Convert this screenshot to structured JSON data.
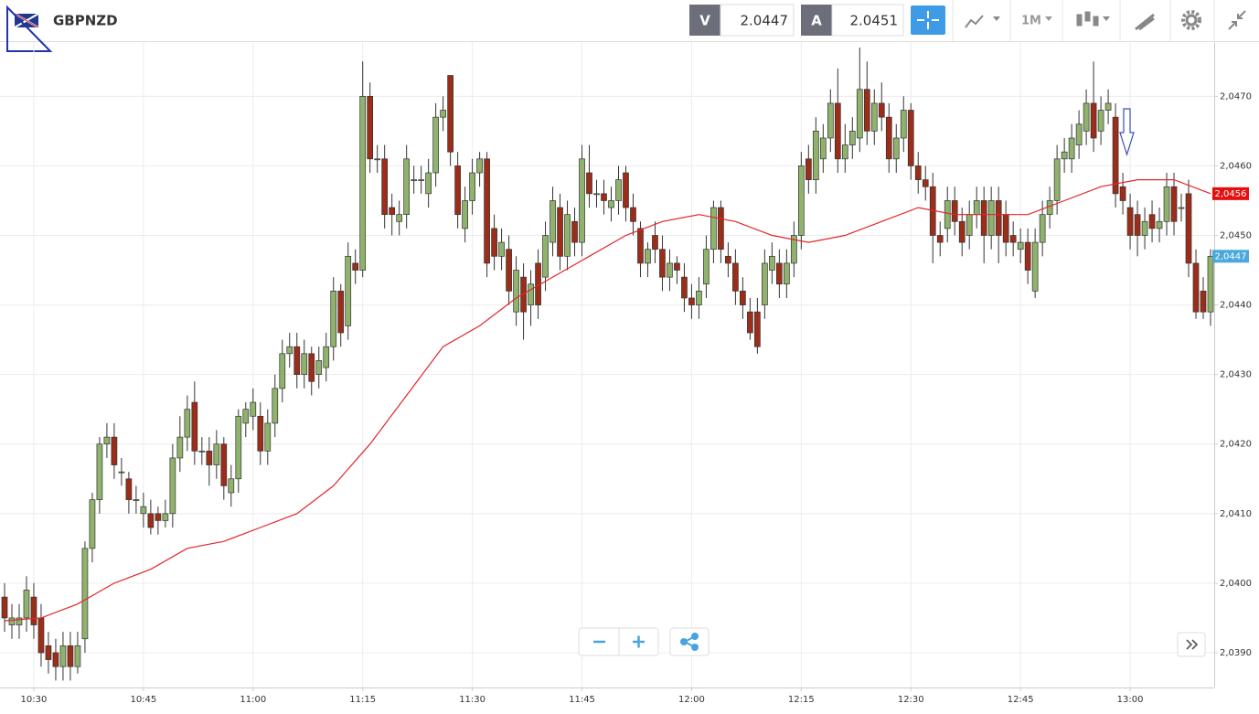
{
  "header": {
    "symbol": "GBPNZD",
    "bid_label": "V",
    "bid": "2.0447",
    "ask_label": "A",
    "ask": "2.0451",
    "timeframe": "1M"
  },
  "chart_data": {
    "type": "candlestick",
    "categories": [
      "10:26",
      "10:27",
      "10:28",
      "10:29",
      "10:30",
      "10:31",
      "10:32",
      "10:33",
      "10:34",
      "10:35",
      "10:36",
      "10:37",
      "10:38",
      "10:39",
      "10:40",
      "10:41",
      "10:42",
      "10:43",
      "10:44",
      "10:45",
      "10:46",
      "10:47",
      "10:48",
      "10:49",
      "10:50",
      "10:51",
      "10:52",
      "10:53",
      "10:54",
      "10:55",
      "10:56",
      "10:57",
      "10:58",
      "10:59",
      "11:00",
      "11:01",
      "11:02",
      "11:03",
      "11:04",
      "11:05",
      "11:06",
      "11:07",
      "11:08",
      "11:09",
      "11:10",
      "11:11",
      "11:12",
      "11:13",
      "11:14",
      "11:15",
      "11:16",
      "11:17",
      "11:18",
      "11:19",
      "11:20",
      "11:21",
      "11:22",
      "11:23",
      "11:24",
      "11:25",
      "11:26",
      "11:27",
      "11:28",
      "11:29",
      "11:30",
      "11:31",
      "11:32",
      "11:33",
      "11:34",
      "11:35",
      "11:36",
      "11:37",
      "11:38",
      "11:39",
      "11:40",
      "11:41",
      "11:42",
      "11:43",
      "11:44",
      "11:45",
      "11:46",
      "11:47",
      "11:48",
      "11:49",
      "11:50",
      "11:51",
      "11:52",
      "11:53",
      "11:54",
      "11:55",
      "11:56",
      "11:57",
      "11:58",
      "11:59",
      "12:00",
      "12:01",
      "12:02",
      "12:03",
      "12:04",
      "12:05",
      "12:06",
      "12:07",
      "12:08",
      "12:09",
      "12:10",
      "12:11",
      "12:12",
      "12:13",
      "12:14",
      "12:15",
      "12:16",
      "12:17",
      "12:18",
      "12:19",
      "12:20",
      "12:21",
      "12:22",
      "12:23",
      "12:24",
      "12:25",
      "12:26",
      "12:27",
      "12:28",
      "12:29",
      "12:30",
      "12:31",
      "12:32",
      "12:33",
      "12:34",
      "12:35",
      "12:36",
      "12:37",
      "12:38",
      "12:39",
      "12:40",
      "12:41",
      "12:42",
      "12:43",
      "12:44",
      "12:45",
      "12:46",
      "12:47",
      "12:48",
      "12:49",
      "12:50",
      "12:51",
      "12:52",
      "12:53",
      "12:54",
      "12:55",
      "12:56",
      "12:57",
      "12:58",
      "12:59",
      "13:00",
      "13:01",
      "13:02",
      "13:03",
      "13:04",
      "13:05",
      "13:06",
      "13:07",
      "13:08",
      "13:09",
      "13:10",
      "13:11"
    ],
    "open": [
      2.0398,
      2.0394,
      2.0394,
      2.0395,
      2.0398,
      2.0395,
      2.0391,
      2.039,
      2.0388,
      2.0391,
      2.0388,
      2.0392,
      2.0405,
      2.0412,
      2.042,
      2.0421,
      2.0416,
      2.0415,
      2.0412,
      2.041,
      2.041,
      2.041,
      2.0409,
      2.041,
      2.0418,
      2.0421,
      2.0426,
      2.0419,
      2.0419,
      2.0417,
      2.042,
      2.0413,
      2.0415,
      2.0423,
      2.0424,
      2.0424,
      2.0419,
      2.0423,
      2.0428,
      2.0433,
      2.0434,
      2.043,
      2.0433,
      2.043,
      2.0431,
      2.0434,
      2.0442,
      2.0437,
      2.0446,
      2.0445,
      2.047,
      2.0461,
      2.0461,
      2.0454,
      2.0452,
      2.0453,
      2.0458,
      2.0458,
      2.0456,
      2.0459,
      2.0467,
      2.0473,
      2.046,
      2.0451,
      2.0455,
      2.0459,
      2.0461,
      2.0451,
      2.0447,
      2.0448,
      2.0439,
      2.0444,
      2.044,
      2.0446,
      2.0444,
      2.0449,
      2.0454,
      2.0447,
      2.0452,
      2.0449,
      2.0459,
      2.0456,
      2.0456,
      2.0454,
      2.0455,
      2.0459,
      2.0454,
      2.0451,
      2.0446,
      2.045,
      2.0448,
      2.0444,
      2.0446,
      2.0444,
      2.0441,
      2.044,
      2.0443,
      2.0448,
      2.0454,
      2.0447,
      2.0446,
      2.0442,
      2.0439,
      2.0439,
      2.044,
      2.0445,
      2.0446,
      2.0443,
      2.0446,
      2.045,
      2.0461,
      2.0458,
      2.0461,
      2.0464,
      2.0469,
      2.0461,
      2.0463,
      2.0464,
      2.0471,
      2.0465,
      2.0469,
      2.0467,
      2.0461,
      2.0464,
      2.0468,
      2.046,
      2.0458,
      2.0457,
      2.045,
      2.0451,
      2.0455,
      2.0452,
      2.045,
      2.0453,
      2.0455,
      2.045,
      2.0455,
      2.0453,
      2.045,
      2.0448,
      2.0449,
      2.0442,
      2.0449,
      2.0453,
      2.0455,
      2.0461,
      2.0461,
      2.0463,
      2.0465,
      2.0469,
      2.0465,
      2.0468,
      2.0467,
      2.0457,
      2.0454,
      2.0453,
      2.045,
      2.0453,
      2.0451,
      2.0452,
      2.0457,
      2.0454,
      2.0456,
      2.0446,
      2.0442,
      2.0439
    ],
    "high": [
      2.04,
      2.0397,
      2.0397,
      2.0401,
      2.04,
      2.0397,
      2.0393,
      2.0392,
      2.0393,
      2.0393,
      2.0393,
      2.0406,
      2.0413,
      2.0421,
      2.0423,
      2.0423,
      2.0418,
      2.0416,
      2.0414,
      2.0413,
      2.0412,
      2.0411,
      2.0412,
      2.042,
      2.0424,
      2.0427,
      2.0429,
      2.0421,
      2.0421,
      2.0422,
      2.0421,
      2.0417,
      2.0425,
      2.0426,
      2.0428,
      2.0426,
      2.0425,
      2.043,
      2.0435,
      2.0436,
      2.0436,
      2.0435,
      2.0434,
      2.0434,
      2.0436,
      2.0444,
      2.0443,
      2.0449,
      2.0448,
      2.0475,
      2.0472,
      2.0463,
      2.0463,
      2.0456,
      2.0455,
      2.0463,
      2.046,
      2.046,
      2.0461,
      2.0469,
      2.047,
      2.0473,
      2.0462,
      2.0457,
      2.0461,
      2.0462,
      2.0462,
      2.0453,
      2.0451,
      2.045,
      2.0447,
      2.0446,
      2.0445,
      2.0448,
      2.0452,
      2.0457,
      2.0456,
      2.0455,
      2.0454,
      2.0463,
      2.0463,
      2.0458,
      2.0458,
      2.0457,
      2.046,
      2.046,
      2.0456,
      2.0452,
      2.0449,
      2.0452,
      2.045,
      2.0448,
      2.0447,
      2.0446,
      2.0443,
      2.0444,
      2.045,
      2.0455,
      2.0455,
      2.0449,
      2.0448,
      2.0444,
      2.0441,
      2.0441,
      2.0448,
      2.0449,
      2.0448,
      2.0448,
      2.0452,
      2.0462,
      2.0463,
      2.0467,
      2.0466,
      2.0471,
      2.0474,
      2.0466,
      2.0467,
      2.0477,
      2.0475,
      2.0471,
      2.0472,
      2.0469,
      2.0466,
      2.047,
      2.0469,
      2.0462,
      2.046,
      2.0459,
      2.0452,
      2.0457,
      2.0457,
      2.0454,
      2.0455,
      2.0457,
      2.0457,
      2.0457,
      2.0457,
      2.0455,
      2.0452,
      2.0451,
      2.0451,
      2.0451,
      2.0455,
      2.0457,
      2.0463,
      2.0464,
      2.0466,
      2.0468,
      2.0471,
      2.0475,
      2.047,
      2.0471,
      2.0469,
      2.0459,
      2.0456,
      2.0455,
      2.0454,
      2.0455,
      2.0454,
      2.0459,
      2.0459,
      2.0456,
      2.0458,
      2.0448,
      2.0444,
      2.0448
    ],
    "low": [
      2.0393,
      2.0392,
      2.0392,
      2.0393,
      2.0392,
      2.0388,
      2.0387,
      2.0386,
      2.0386,
      2.0386,
      2.0387,
      2.039,
      2.0403,
      2.041,
      2.0418,
      2.0415,
      2.0414,
      2.041,
      2.041,
      2.0408,
      2.0407,
      2.0407,
      2.0408,
      2.0408,
      2.0416,
      2.0419,
      2.0417,
      2.0417,
      2.0414,
      2.0415,
      2.0412,
      2.0411,
      2.0413,
      2.0421,
      2.0422,
      2.0417,
      2.0417,
      2.0421,
      2.0426,
      2.0431,
      2.0428,
      2.0428,
      2.0427,
      2.0428,
      2.0429,
      2.0432,
      2.0434,
      2.0435,
      2.0443,
      2.0444,
      2.0459,
      2.0459,
      2.0451,
      2.045,
      2.045,
      2.0451,
      2.0456,
      2.0456,
      2.0454,
      2.0457,
      2.0465,
      2.046,
      2.0451,
      2.0449,
      2.0453,
      2.0457,
      2.0444,
      2.0445,
      2.0445,
      2.044,
      2.0437,
      2.0435,
      2.0437,
      2.0438,
      2.0442,
      2.0447,
      2.0445,
      2.0445,
      2.0447,
      2.0447,
      2.0454,
      2.0454,
      2.0453,
      2.0452,
      2.0453,
      2.0452,
      2.045,
      2.0444,
      2.0444,
      2.0446,
      2.0442,
      2.0442,
      2.0443,
      2.0439,
      2.0438,
      2.0438,
      2.0441,
      2.0446,
      2.0446,
      2.0444,
      2.044,
      2.0438,
      2.0435,
      2.0433,
      2.0438,
      2.0443,
      2.0441,
      2.0441,
      2.0444,
      2.0448,
      2.0456,
      2.0456,
      2.0459,
      2.0462,
      2.0459,
      2.0459,
      2.0461,
      2.0462,
      2.0463,
      2.0463,
      2.0465,
      2.0459,
      2.0459,
      2.0462,
      2.0458,
      2.0456,
      2.0455,
      2.0446,
      2.0447,
      2.0449,
      2.045,
      2.0447,
      2.0448,
      2.0451,
      2.0446,
      2.0448,
      2.0446,
      2.0447,
      2.0447,
      2.0446,
      2.0443,
      2.0441,
      2.0447,
      2.0451,
      2.0453,
      2.0459,
      2.0459,
      2.0461,
      2.0463,
      2.0462,
      2.0463,
      2.0466,
      2.0454,
      2.0453,
      2.0448,
      2.0447,
      2.0448,
      2.0449,
      2.0449,
      2.045,
      2.045,
      2.0452,
      2.0444,
      2.0438,
      2.0438,
      2.0437
    ],
    "close": [
      2.0395,
      2.0395,
      2.0395,
      2.0399,
      2.0394,
      2.039,
      2.0389,
      2.0388,
      2.0391,
      2.0388,
      2.0391,
      2.0405,
      2.0412,
      2.042,
      2.0421,
      2.0417,
      2.0416,
      2.0412,
      2.0412,
      2.0411,
      2.0408,
      2.0409,
      2.041,
      2.0418,
      2.0421,
      2.0425,
      2.0419,
      2.0419,
      2.0417,
      2.042,
      2.0414,
      2.0415,
      2.0424,
      2.0425,
      2.0426,
      2.0419,
      2.0423,
      2.0428,
      2.0433,
      2.0434,
      2.043,
      2.0433,
      2.0429,
      2.0432,
      2.0434,
      2.0442,
      2.0436,
      2.0447,
      2.0445,
      2.047,
      2.0461,
      2.0461,
      2.0453,
      2.0453,
      2.0453,
      2.0461,
      2.0458,
      2.0458,
      2.0459,
      2.0467,
      2.0468,
      2.0462,
      2.0453,
      2.0455,
      2.0459,
      2.0461,
      2.0446,
      2.0447,
      2.0449,
      2.0442,
      2.0445,
      2.0439,
      2.0443,
      2.044,
      2.045,
      2.0455,
      2.0447,
      2.0453,
      2.0449,
      2.0461,
      2.0456,
      2.0456,
      2.0455,
      2.0455,
      2.0458,
      2.0454,
      2.0452,
      2.0446,
      2.0448,
      2.0448,
      2.0444,
      2.0446,
      2.0445,
      2.0441,
      2.044,
      2.0442,
      2.0448,
      2.0454,
      2.0448,
      2.0446,
      2.0442,
      2.044,
      2.0436,
      2.0434,
      2.0446,
      2.0447,
      2.0443,
      2.0446,
      2.045,
      2.046,
      2.0458,
      2.0465,
      2.0464,
      2.0469,
      2.0461,
      2.0463,
      2.0465,
      2.0471,
      2.0465,
      2.0469,
      2.0467,
      2.0461,
      2.0464,
      2.0468,
      2.046,
      2.0458,
      2.0457,
      2.045,
      2.0449,
      2.0455,
      2.0452,
      2.0449,
      2.0453,
      2.0455,
      2.045,
      2.0455,
      2.045,
      2.0449,
      2.0449,
      2.0449,
      2.0445,
      2.0449,
      2.0453,
      2.0455,
      2.0461,
      2.0462,
      2.0464,
      2.0466,
      2.0469,
      2.0464,
      2.0468,
      2.0469,
      2.0456,
      2.0455,
      2.045,
      2.045,
      2.0452,
      2.0451,
      2.0452,
      2.0457,
      2.0452,
      2.0454,
      2.0446,
      2.0439,
      2.0439,
      2.0447
    ],
    "up_color": "#8fb36c",
    "down_color": "#9b2d19",
    "ma": {
      "color": "#e3262a",
      "x": [
        "10:26",
        "10:31",
        "10:36",
        "10:41",
        "10:46",
        "10:51",
        "10:56",
        "11:01",
        "11:06",
        "11:11",
        "11:16",
        "11:21",
        "11:26",
        "11:31",
        "11:36",
        "11:41",
        "11:46",
        "11:51",
        "11:56",
        "12:01",
        "12:06",
        "12:11",
        "12:16",
        "12:21",
        "12:26",
        "12:31",
        "12:36",
        "12:41",
        "12:46",
        "12:51",
        "12:56",
        "13:01",
        "13:06",
        "13:11"
      ],
      "values": [
        2.03946,
        2.0395,
        2.0397,
        2.04,
        2.0402,
        2.0405,
        2.0406,
        2.0408,
        2.041,
        2.0414,
        2.042,
        2.0427,
        2.0434,
        2.0437,
        2.0441,
        2.0444,
        2.0447,
        2.045,
        2.0452,
        2.0453,
        2.0452,
        2.045,
        2.0449,
        2.045,
        2.0452,
        2.0454,
        2.0453,
        2.0453,
        2.0453,
        2.0455,
        2.0457,
        2.0458,
        2.0458,
        2.0456
      ]
    },
    "ylim": [
      2.0385,
      2.04778
    ],
    "yticks": [
      {
        "value": 2.039,
        "label": "2,0390"
      },
      {
        "value": 2.04,
        "label": "2,0400"
      },
      {
        "value": 2.041,
        "label": "2,0410"
      },
      {
        "value": 2.042,
        "label": "2,0420"
      },
      {
        "value": 2.043,
        "label": "2,0430"
      },
      {
        "value": 2.044,
        "label": "2,0440"
      },
      {
        "value": 2.045,
        "label": "2,0450"
      },
      {
        "value": 2.046,
        "label": "2,0460"
      },
      {
        "value": 2.047,
        "label": "2,0470"
      }
    ],
    "xticks": [
      "10:30",
      "10:45",
      "11:00",
      "11:15",
      "11:30",
      "11:45",
      "12:00",
      "12:15",
      "12:30",
      "12:45",
      "13:00"
    ],
    "grid": true,
    "price_tags": [
      {
        "value": 2.0456,
        "label": "2,0456",
        "color": "#e50f0f"
      },
      {
        "value": 2.0447,
        "label": "2,0447",
        "color": "#4aa8dc"
      }
    ]
  }
}
